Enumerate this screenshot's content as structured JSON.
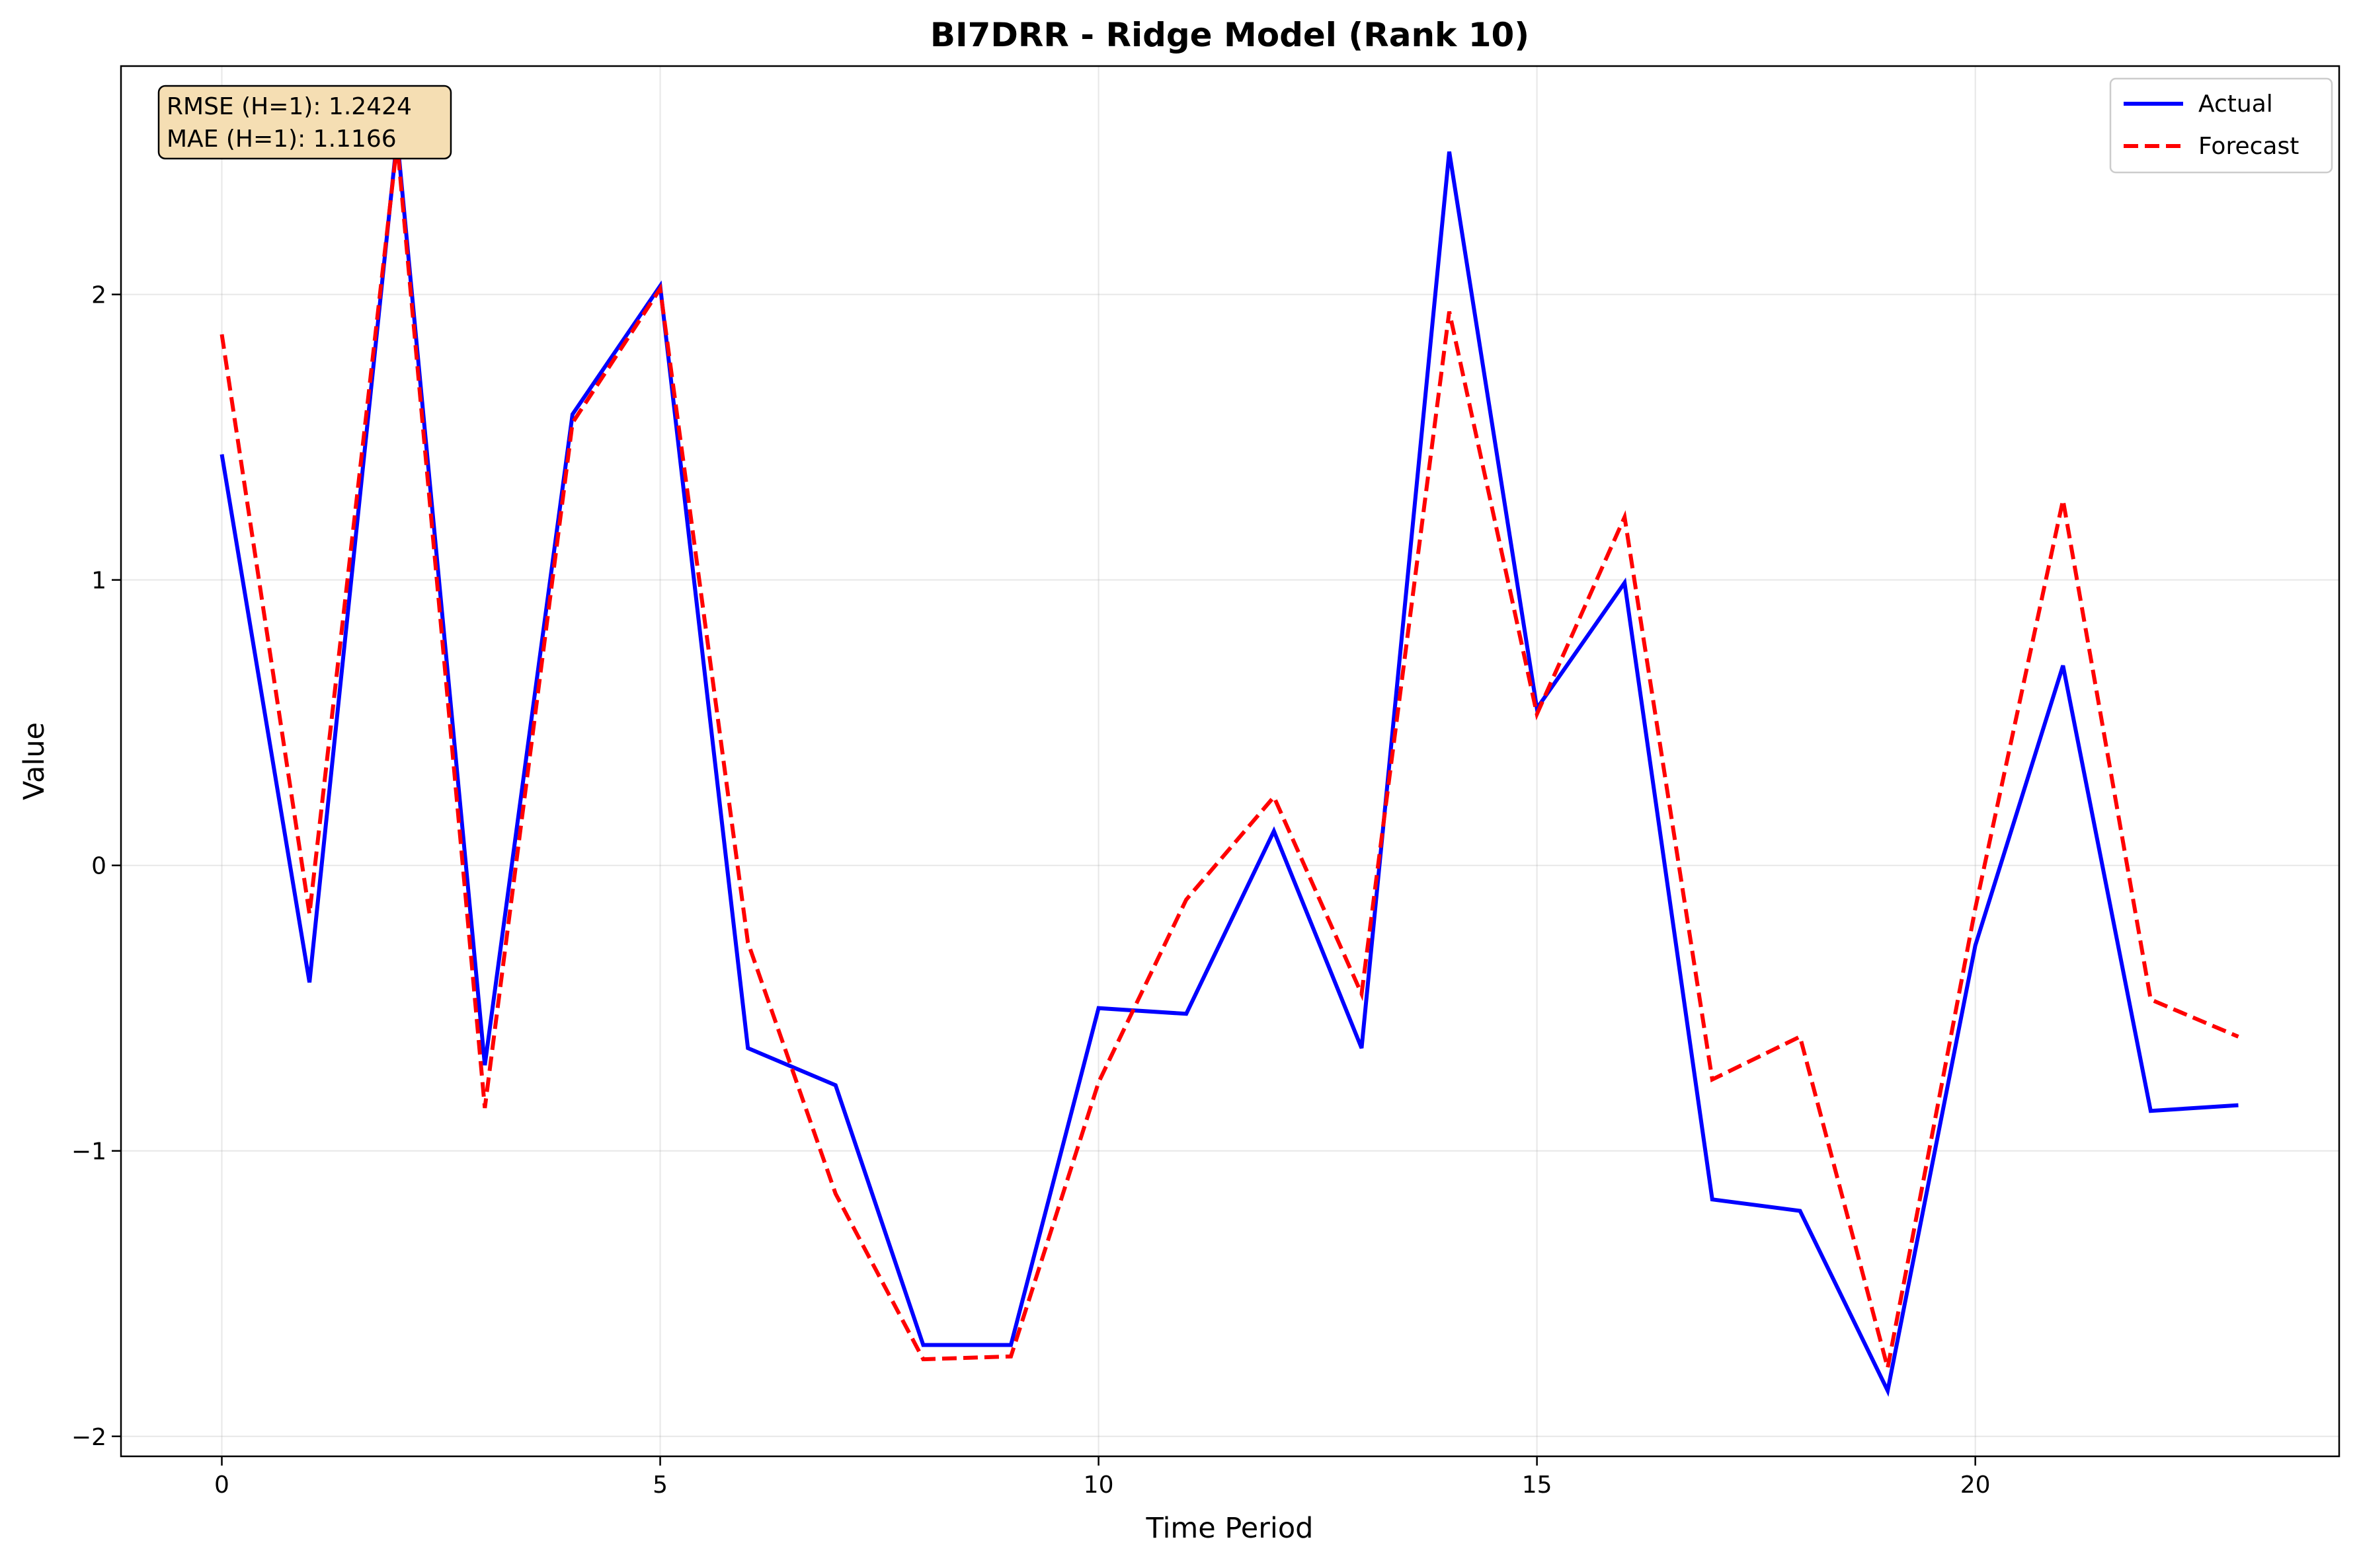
{
  "chart_data": {
    "type": "line",
    "title": "BI7DRR - Ridge Model (Rank 10)",
    "xlabel": "Time Period",
    "ylabel": "Value",
    "xlim": [
      -1.15,
      24.15
    ],
    "ylim": [
      -2.07,
      2.8
    ],
    "x_ticks": [
      0,
      5,
      10,
      15,
      20
    ],
    "x_tick_labels": [
      "0",
      "5",
      "10",
      "15",
      "20"
    ],
    "y_ticks": [
      -2,
      -1,
      0,
      1,
      2
    ],
    "y_tick_labels": [
      "−2",
      "−1",
      "0",
      "1",
      "2"
    ],
    "grid": true,
    "legend_position": "top-right",
    "x": [
      0,
      1,
      2,
      3,
      4,
      5,
      6,
      7,
      8,
      9,
      10,
      11,
      12,
      13,
      14,
      15,
      16,
      17,
      18,
      19,
      20,
      21,
      22,
      23
    ],
    "series": [
      {
        "name": "Actual",
        "color": "#0000ff",
        "style": "solid",
        "values": [
          1.44,
          -0.41,
          2.55,
          -0.7,
          1.58,
          2.03,
          -0.64,
          -0.77,
          -1.68,
          -1.68,
          -0.5,
          -0.52,
          0.12,
          -0.64,
          2.5,
          0.55,
          0.99,
          -1.17,
          -1.21,
          -1.84,
          -0.28,
          0.7,
          -0.86,
          -0.84
        ]
      },
      {
        "name": "Forecast",
        "color": "#ff0000",
        "style": "dashed",
        "values": [
          1.86,
          -0.17,
          2.53,
          -0.85,
          1.55,
          2.02,
          -0.27,
          -1.15,
          -1.73,
          -1.72,
          -0.76,
          -0.12,
          0.24,
          -0.45,
          1.94,
          0.53,
          1.22,
          -0.75,
          -0.6,
          -1.76,
          -0.15,
          1.28,
          -0.47,
          -0.6
        ]
      }
    ],
    "annotation": {
      "lines": [
        "RMSE (H=1): 1.2424",
        "MAE (H=1): 1.1166"
      ],
      "background": "#f5deb3"
    }
  }
}
